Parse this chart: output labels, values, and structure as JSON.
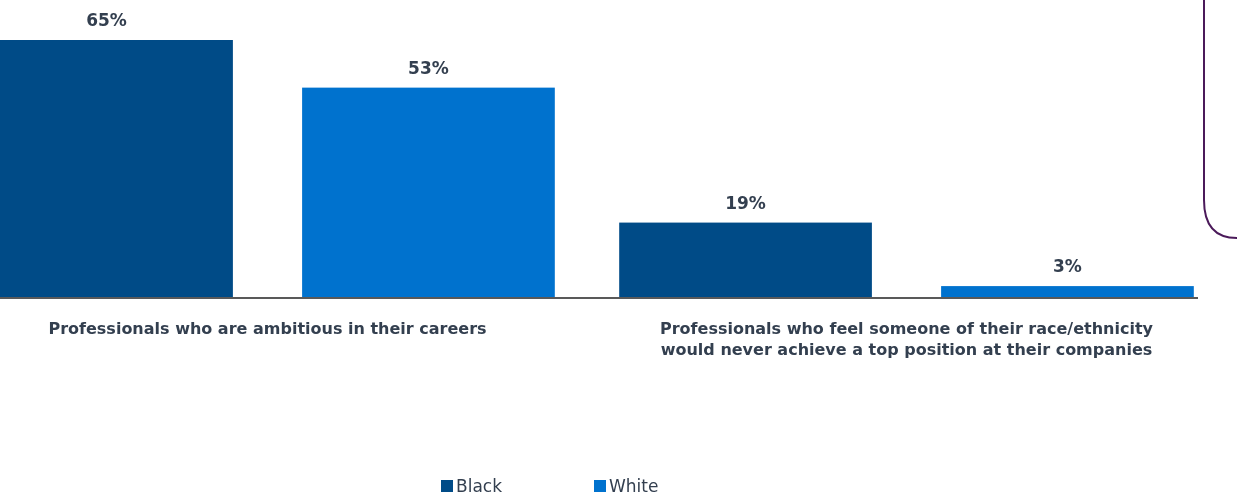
{
  "chart_data": {
    "type": "bar",
    "categories": [
      "Professionals who are ambitious in their careers",
      "Professionals who feel someone of their race/ethnicity would never achieve a top position at their companies"
    ],
    "series": [
      {
        "name": "Black",
        "color": "#004b87",
        "values": [
          65,
          19
        ],
        "value_labels": [
          "65%",
          "19%"
        ]
      },
      {
        "name": "White",
        "color": "#0072ce",
        "values": [
          53,
          3
        ],
        "value_labels": [
          "53%",
          "3%"
        ]
      }
    ],
    "legend": "bottom"
  }
}
